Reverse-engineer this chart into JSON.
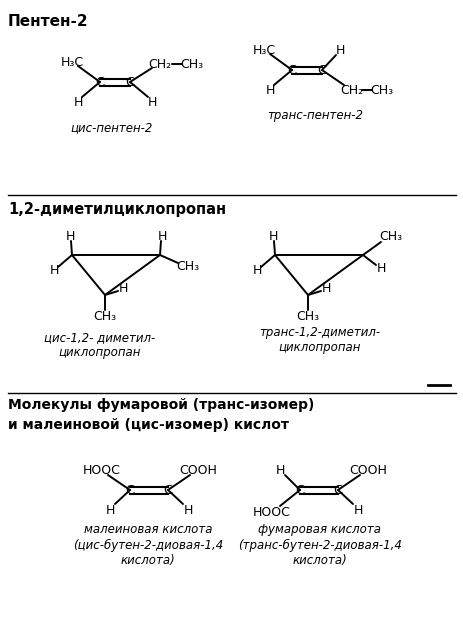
{
  "bg_color": "#ffffff",
  "title1": "Пентен-2",
  "title2": "1,2-диметилциклопропан",
  "title3_line1": "Молекулы фумаровой (транс-изомер)",
  "title3_line2": "и малеиновой (цис-изомер) кислот",
  "label_cis_penten": "цис-пентен-2",
  "label_trans_penten": "транс-пентен-2",
  "label_cis_cyclo": "цис-1,2- диметил-\nциклопропан",
  "label_trans_cyclo": "транс-1,2-диметил-\nциклопропан",
  "label_maleic": "малеиновая кислота\n(цис-бутен-2-диовая-1,4\nкислота)",
  "label_fumaric": "фумаровая кислота\n(транс-бутен-2-диовая-1,4\nкислота)"
}
